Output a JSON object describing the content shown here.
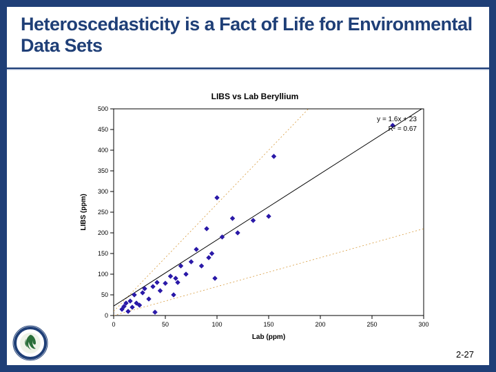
{
  "slide": {
    "title": "Heteroscedasticity is a Fact of Life for Environmental Data Sets",
    "page_number": "2-27",
    "background_color": "#1f3f77",
    "content_background": "#ffffff",
    "title_color": "#1f3f77",
    "title_fontsize": 27,
    "title_weight": 900
  },
  "chart": {
    "type": "scatter",
    "title": "LIBS vs Lab Beryllium",
    "title_fontsize": 12,
    "xlabel": "Lab (ppm)",
    "ylabel": "LIBS (ppm)",
    "label_fontsize": 10,
    "tick_fontsize": 9,
    "xlim": [
      0,
      300
    ],
    "ylim": [
      0,
      500
    ],
    "xtick_step": 50,
    "ytick_step": 50,
    "grid": false,
    "axis_color": "#000000",
    "tick_color": "#000000",
    "background_color": "#ffffff",
    "points": [
      [
        8,
        15
      ],
      [
        10,
        22
      ],
      [
        12,
        30
      ],
      [
        14,
        10
      ],
      [
        16,
        35
      ],
      [
        18,
        20
      ],
      [
        20,
        50
      ],
      [
        22,
        30
      ],
      [
        25,
        25
      ],
      [
        28,
        55
      ],
      [
        30,
        65
      ],
      [
        34,
        40
      ],
      [
        38,
        70
      ],
      [
        40,
        8
      ],
      [
        42,
        80
      ],
      [
        45,
        60
      ],
      [
        50,
        78
      ],
      [
        55,
        95
      ],
      [
        58,
        50
      ],
      [
        60,
        90
      ],
      [
        62,
        80
      ],
      [
        65,
        120
      ],
      [
        70,
        100
      ],
      [
        75,
        130
      ],
      [
        80,
        160
      ],
      [
        85,
        120
      ],
      [
        90,
        210
      ],
      [
        92,
        140
      ],
      [
        95,
        150
      ],
      [
        98,
        90
      ],
      [
        100,
        285
      ],
      [
        105,
        190
      ],
      [
        115,
        235
      ],
      [
        120,
        200
      ],
      [
        135,
        230
      ],
      [
        150,
        240
      ],
      [
        155,
        385
      ],
      [
        270,
        460
      ]
    ],
    "marker_color": "#2b1aa8",
    "marker_size": 3.5,
    "fit_line": {
      "slope": 1.6,
      "intercept": 23,
      "label_eq": "y = 1.6x + 23",
      "label_r2": "R² = 0.67",
      "color": "#000000",
      "width": 1
    },
    "ref_lines": [
      {
        "slope": 2.6,
        "intercept": 10,
        "color": "#d79a3b",
        "dash": "2,3",
        "width": 0.8
      },
      {
        "slope": 0.7,
        "intercept": 0,
        "color": "#d79a3b",
        "dash": "2,3",
        "width": 0.8
      }
    ]
  },
  "logo": {
    "name": "epa-seal",
    "ring_color": "#1f3f77",
    "inner_color": "#2a6f3a"
  }
}
